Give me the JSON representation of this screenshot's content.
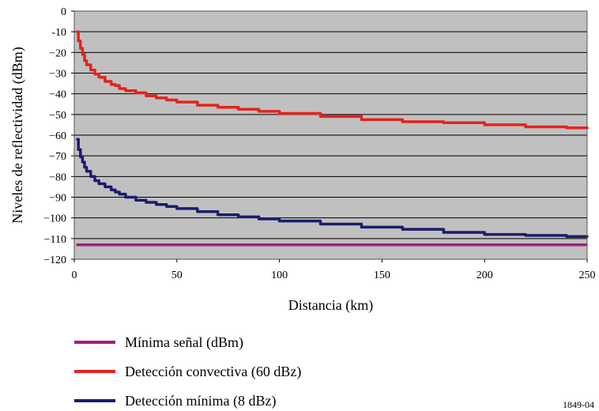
{
  "chart_data": {
    "type": "line",
    "xlabel": "Distancia (km)",
    "ylabel": "Niveles de reflectividad (dBm)",
    "xlim": [
      0,
      250
    ],
    "ylim": [
      -120,
      0
    ],
    "x_ticks": [
      "0",
      "50",
      "100",
      "150",
      "200",
      "250"
    ],
    "y_ticks": [
      "0",
      "-10",
      "−20",
      "−30",
      "−40",
      "−50",
      "−60",
      "−70",
      "−80",
      "−90",
      "−100",
      "−110",
      "−120"
    ],
    "grid": true,
    "background": "#c0c0c0",
    "legend_position": "bottom",
    "series": [
      {
        "name": "Mínima señal (dBm)",
        "color": "#a0207f",
        "x": [
          1,
          250
        ],
        "y": [
          -113,
          -113
        ]
      },
      {
        "name": "Detección convectiva (60 dBz)",
        "color": "#e3241c",
        "x": [
          1,
          2,
          3,
          4,
          5,
          6,
          8,
          10,
          12,
          15,
          18,
          20,
          22,
          25,
          30,
          35,
          40,
          45,
          50,
          60,
          70,
          80,
          90,
          100,
          120,
          140,
          160,
          180,
          200,
          220,
          240,
          250
        ],
        "y": [
          -10,
          -14.5,
          -18,
          -21,
          -24,
          -26,
          -28.5,
          -30.5,
          -32,
          -34,
          -35.5,
          -36,
          -37.5,
          -38.5,
          -39.5,
          -41,
          -42,
          -43,
          -44,
          -45.5,
          -46.5,
          -47.5,
          -48.5,
          -49.5,
          -51,
          -52.5,
          -53.5,
          -54,
          -55,
          -56,
          -56.5,
          -57
        ]
      },
      {
        "name": "Detección mínima (8 dBz)",
        "color": "#1c1c6f",
        "x": [
          1,
          2,
          3,
          4,
          5,
          6,
          8,
          10,
          12,
          15,
          18,
          20,
          22,
          25,
          30,
          35,
          40,
          45,
          50,
          60,
          70,
          80,
          90,
          100,
          120,
          140,
          160,
          180,
          200,
          220,
          240,
          250
        ],
        "y": [
          -62,
          -67,
          -70.5,
          -73,
          -75.5,
          -77.5,
          -80,
          -82,
          -83.5,
          -85,
          -86.5,
          -87.5,
          -88.5,
          -90,
          -91.5,
          -92.5,
          -93.5,
          -94.5,
          -95.5,
          -97,
          -98.5,
          -99.5,
          -100.5,
          -101.5,
          -103,
          -104.5,
          -105.5,
          -107,
          -108,
          -108.5,
          -109,
          -109.5
        ]
      }
    ]
  },
  "figure_id": "1849-04"
}
